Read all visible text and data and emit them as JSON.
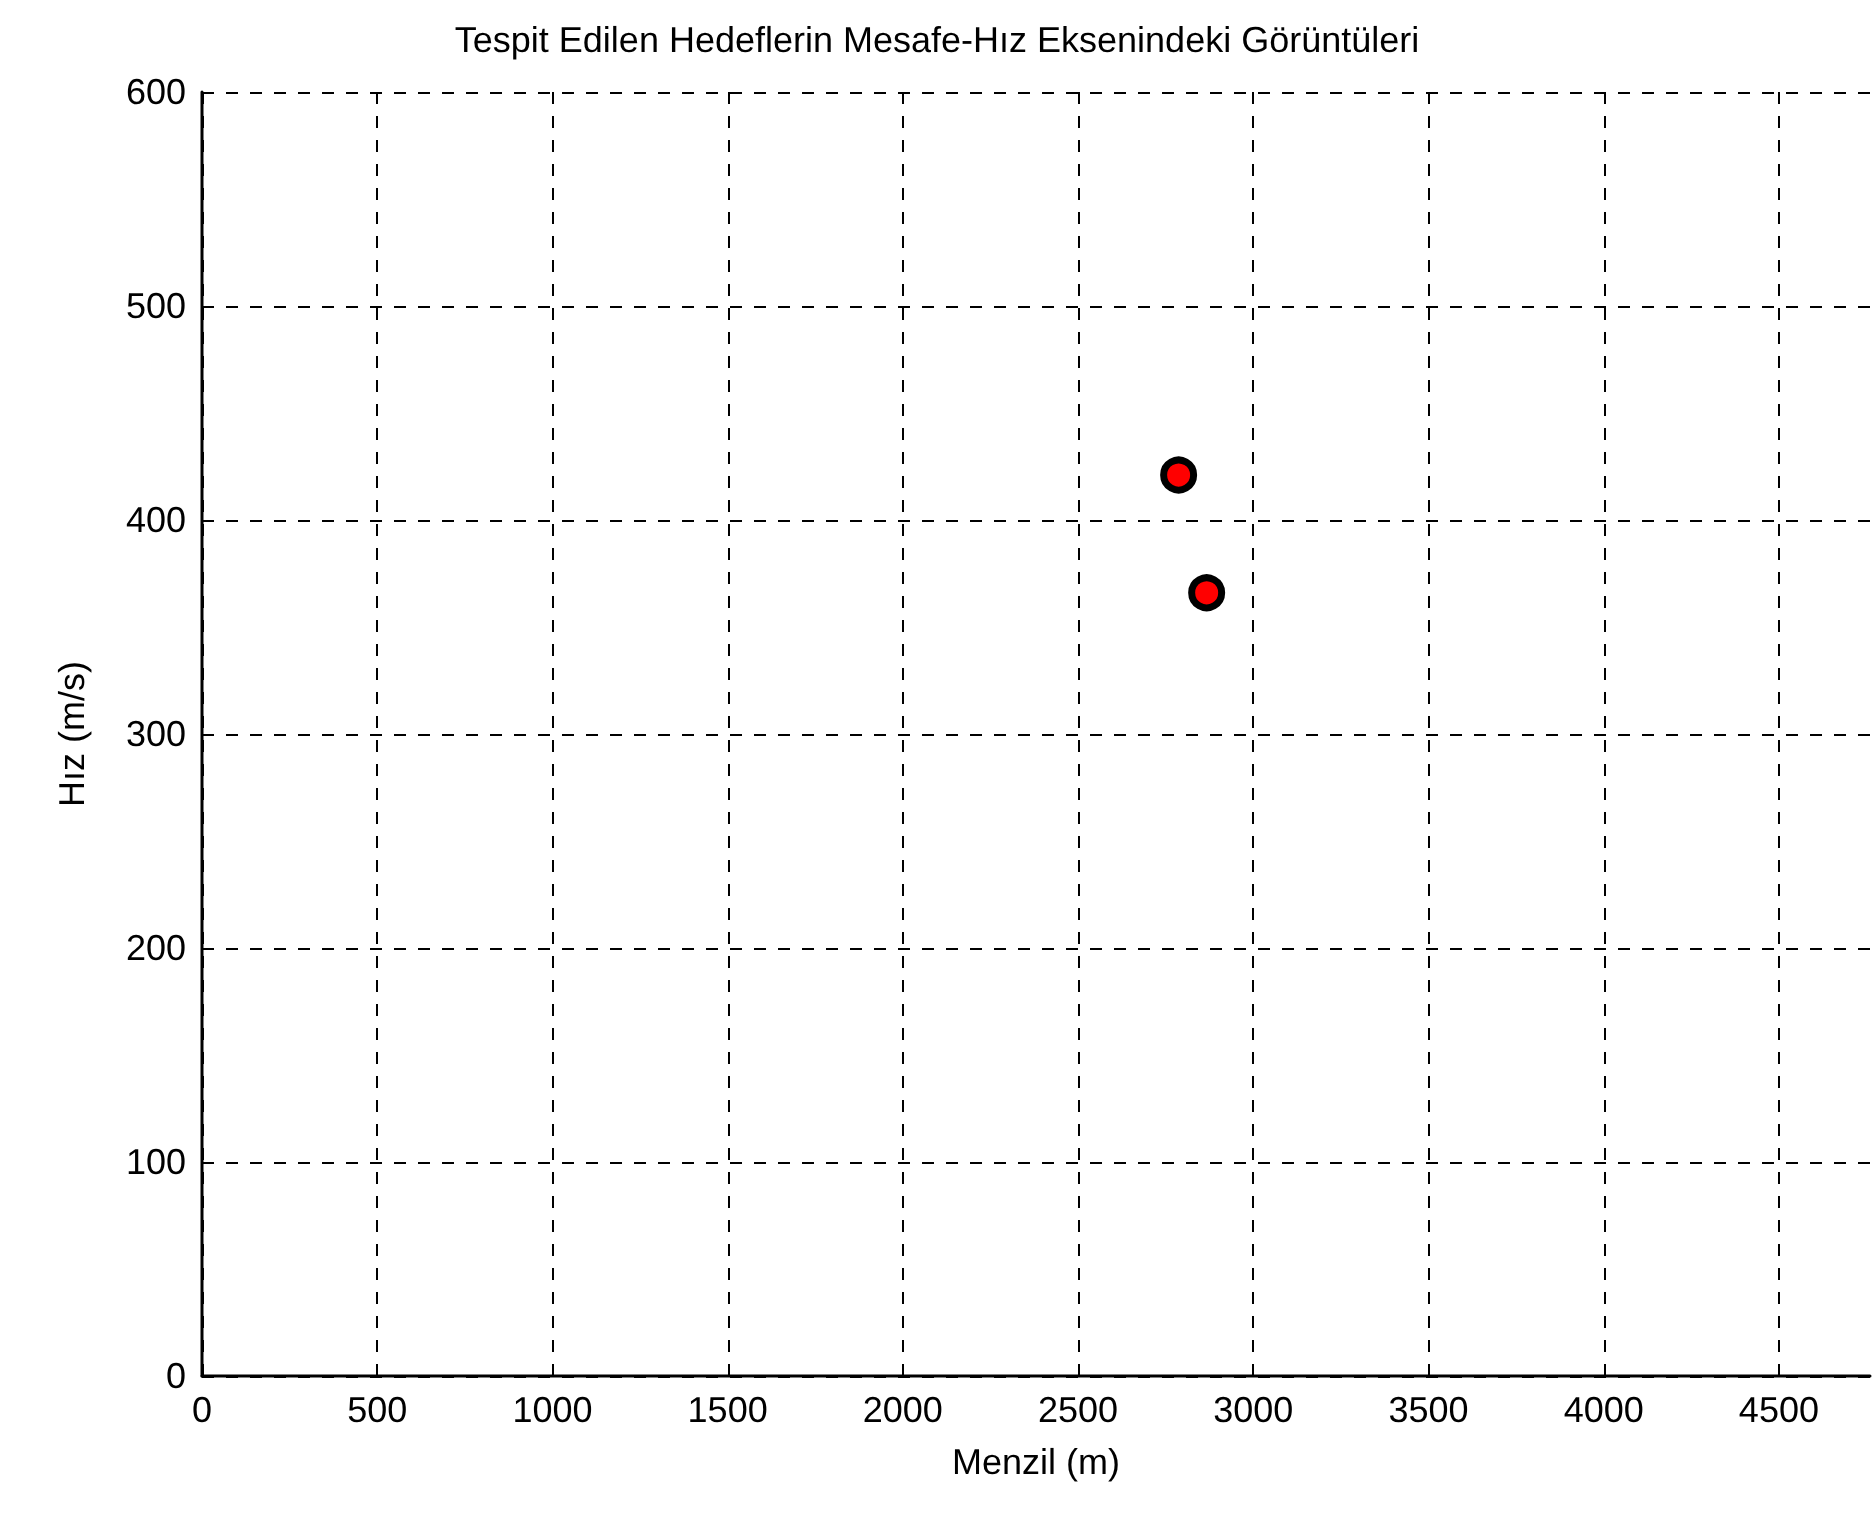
{
  "chart_data": {
    "type": "scatter",
    "title": "Tespit Edilen Hedeflerin Mesafe-Hız Eksenindeki Görüntüleri",
    "xlabel": "Menzil (m)",
    "ylabel": "Hız (m/s)",
    "series": [
      {
        "color": "#ff0000",
        "x": [
          2787,
          2867
        ],
        "values": [
          421,
          366
        ]
      }
    ],
    "xlim": [
      0,
      4760
    ],
    "xticks": [
      0,
      500,
      1000,
      1500,
      2000,
      2500,
      3000,
      3500,
      4000,
      4500
    ],
    "ylim": [
      0,
      600
    ],
    "yticks": [
      0,
      100,
      200,
      300,
      400,
      500,
      600
    ],
    "grid": true,
    "marker": "circle"
  }
}
